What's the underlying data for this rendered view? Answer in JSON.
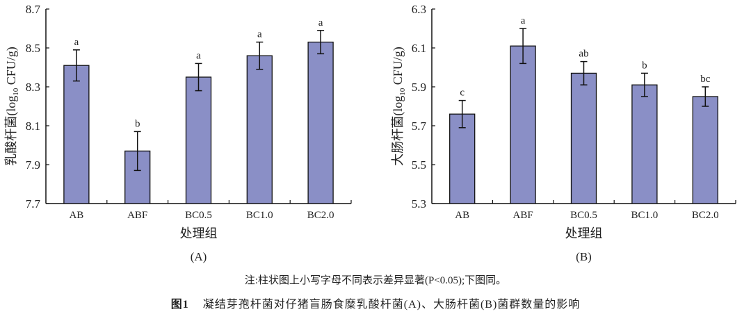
{
  "colors": {
    "bar": "#8a8fc6",
    "stroke": "#111111"
  },
  "chart_data": [
    {
      "type": "bar",
      "panel_label": "(A)",
      "categories": [
        "AB",
        "ABF",
        "BC0.5",
        "BC1.0",
        "BC2.0"
      ],
      "values": [
        8.41,
        7.97,
        8.35,
        8.46,
        8.53
      ],
      "errors": [
        0.08,
        0.1,
        0.07,
        0.07,
        0.06
      ],
      "significance_letters": [
        "a",
        "b",
        "a",
        "a",
        "a"
      ],
      "xlabel": "处理组",
      "ylabel": {
        "prefix": "乳酸杆菌(log",
        "sub": "10",
        "suffix": " CFU/g)"
      },
      "ylim": [
        7.7,
        8.7
      ],
      "yticks": [
        "7.7",
        "7.9",
        "8.1",
        "8.3",
        "8.5",
        "8.7"
      ],
      "grid": false
    },
    {
      "type": "bar",
      "panel_label": "(B)",
      "categories": [
        "AB",
        "ABF",
        "BC0.5",
        "BC1.0",
        "BC2.0"
      ],
      "values": [
        5.76,
        6.11,
        5.97,
        5.91,
        5.85
      ],
      "errors": [
        0.07,
        0.09,
        0.06,
        0.06,
        0.05
      ],
      "significance_letters": [
        "c",
        "a",
        "ab",
        "b",
        "bc"
      ],
      "xlabel": "处理组",
      "ylabel": {
        "prefix": "大肠杆菌(log",
        "sub": "10",
        "suffix": " CFU/g)"
      },
      "ylim": [
        5.3,
        6.3
      ],
      "yticks": [
        "5.3",
        "5.5",
        "5.7",
        "5.9",
        "6.1",
        "6.3"
      ],
      "grid": false
    }
  ],
  "note": "注:柱状图上小写字母不同表示差异显著(P<0.05);下图同。",
  "caption": {
    "label": "图1",
    "text": "凝结芽孢杆菌对仔猪盲肠食糜乳酸杆菌(A)、大肠杆菌(B)菌群数量的影响"
  }
}
